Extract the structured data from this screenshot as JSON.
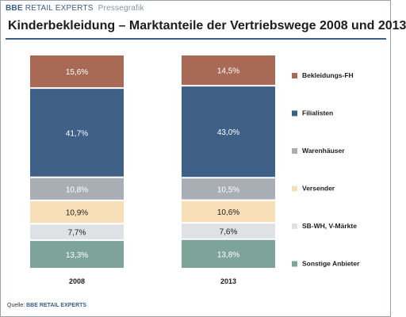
{
  "header": {
    "brand": "BBE",
    "brand_sub": "RETAIL EXPERTS",
    "label": "Pressegrafik"
  },
  "title": "Kinderbekleidung – Marktanteile der Vertriebswege 2008 und 2013",
  "source": {
    "prefix": "Quelle: ",
    "brand": "BBE RETAIL EXPERTS"
  },
  "chart_data": {
    "type": "bar",
    "stacked": true,
    "categories": [
      "2008",
      "2013"
    ],
    "ylim": [
      0,
      100
    ],
    "grid": false,
    "legend_position": "right",
    "series": [
      {
        "name": "Bekleidungs-FH",
        "values": [
          15.6,
          14.5
        ],
        "labels": [
          "15,6%",
          "14,5%"
        ],
        "color": "#a86a55",
        "text_color": "#ffffff"
      },
      {
        "name": "Filialisten",
        "values": [
          41.7,
          43.0
        ],
        "labels": [
          "41,7%",
          "43,0%"
        ],
        "color": "#3e5f86",
        "text_color": "#ffffff"
      },
      {
        "name": "Warenhäuser",
        "values": [
          10.8,
          10.5
        ],
        "labels": [
          "10,8%",
          "10,5%"
        ],
        "color": "#a9adb4",
        "text_color": "#ffffff"
      },
      {
        "name": "Versender",
        "values": [
          10.9,
          10.6
        ],
        "labels": [
          "10,9%",
          "10,6%"
        ],
        "color": "#f9dfb8",
        "text_color": "#1d1d1d"
      },
      {
        "name": "SB-WH, V-Märkte",
        "values": [
          7.7,
          7.6
        ],
        "labels": [
          "7,7%",
          "7,6%"
        ],
        "color": "#dfe1e4",
        "text_color": "#1d1d1d"
      },
      {
        "name": "Sonstige Anbieter",
        "values": [
          13.3,
          13.8
        ],
        "labels": [
          "13,3%",
          "13,8%"
        ],
        "color": "#7ea49a",
        "text_color": "#ffffff"
      }
    ]
  }
}
